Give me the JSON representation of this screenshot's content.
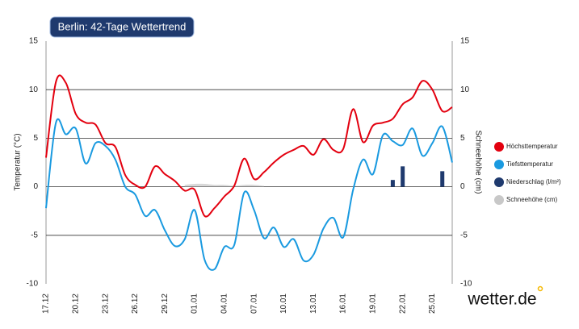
{
  "chart_data": {
    "type": "line",
    "title": "Berlin: 42-Tage Wettertrend",
    "ylabel": "Temperatur (°C)",
    "y2label": "Schneehöhe (cm)",
    "brand": "wetter.de",
    "categories": [
      "17.12",
      null,
      null,
      "20.12",
      null,
      null,
      "23.12",
      null,
      null,
      "26.12",
      null,
      null,
      "29.12",
      null,
      null,
      "01.01",
      null,
      null,
      "04.01",
      null,
      null,
      "07.01",
      null,
      null,
      "10.01",
      null,
      null,
      "13.01",
      null,
      null,
      "16.01",
      null,
      null,
      "19.01",
      null,
      null,
      "22.01",
      null,
      null,
      "25.01",
      null,
      null
    ],
    "series": [
      {
        "name": "Höchsttemperatur",
        "color": "#e3000f",
        "kind": "line",
        "values": [
          3,
          10.8,
          10.7,
          7.5,
          6.6,
          6.4,
          4.5,
          4.1,
          1.2,
          0.2,
          0,
          2.1,
          1.3,
          0.6,
          -0.4,
          -0.3,
          -3,
          -2.2,
          -1,
          0.1,
          2.9,
          0.8,
          1.5,
          2.5,
          3.3,
          3.8,
          4.2,
          3.3,
          4.9,
          3.8,
          3.9,
          8,
          4.6,
          6.3,
          6.6,
          7,
          8.5,
          9.2,
          10.9,
          10,
          7.8,
          8.2
        ]
      },
      {
        "name": "Tiefsttemperatur",
        "color": "#1a9ae0",
        "kind": "line",
        "values": [
          -2.2,
          6.6,
          5.4,
          6,
          2.4,
          4.5,
          4.2,
          2.8,
          0,
          -0.8,
          -3,
          -2.4,
          -4.5,
          -6.1,
          -5.4,
          -2.4,
          -7.5,
          -8.5,
          -6.2,
          -6,
          -0.6,
          -2.4,
          -5.3,
          -4.2,
          -6.2,
          -5.4,
          -7.6,
          -7,
          -4.3,
          -3.2,
          -5.2,
          -0.3,
          2.8,
          1.3,
          5.3,
          4.7,
          4.3,
          6,
          3.2,
          4.5,
          6.2,
          2.5
        ]
      },
      {
        "name": "Niederschlag (l/m²)",
        "color": "#1f3a6e",
        "kind": "bar",
        "values": [
          null,
          null,
          null,
          null,
          null,
          null,
          null,
          null,
          null,
          null,
          null,
          null,
          null,
          null,
          null,
          null,
          null,
          null,
          null,
          null,
          null,
          null,
          null,
          null,
          null,
          null,
          null,
          null,
          null,
          null,
          null,
          null,
          null,
          null,
          null,
          0.7,
          2.1,
          null,
          null,
          null,
          1.6,
          null
        ]
      },
      {
        "name": "Schneehöhe (cm)",
        "color": "#c8c8c8",
        "kind": "area",
        "axis": "y2",
        "values": [
          null,
          null,
          null,
          null,
          null,
          null,
          null,
          null,
          null,
          null,
          null,
          null,
          null,
          null,
          0.2,
          0.3,
          0.3,
          0.2,
          0.2,
          0.1,
          0.2,
          0.2,
          0.1,
          null,
          null,
          null,
          null,
          null,
          null,
          null,
          null,
          null,
          null,
          null,
          null,
          null,
          null,
          null,
          null,
          null,
          null,
          null
        ]
      }
    ],
    "ylim": [
      -10,
      15
    ],
    "yticks": [
      -10,
      -5,
      0,
      5,
      10,
      15
    ],
    "y2lim": [
      -10,
      15
    ],
    "y2ticks": [
      -10,
      -5,
      0,
      5,
      10,
      15
    ],
    "grid": true,
    "legend": "right"
  }
}
